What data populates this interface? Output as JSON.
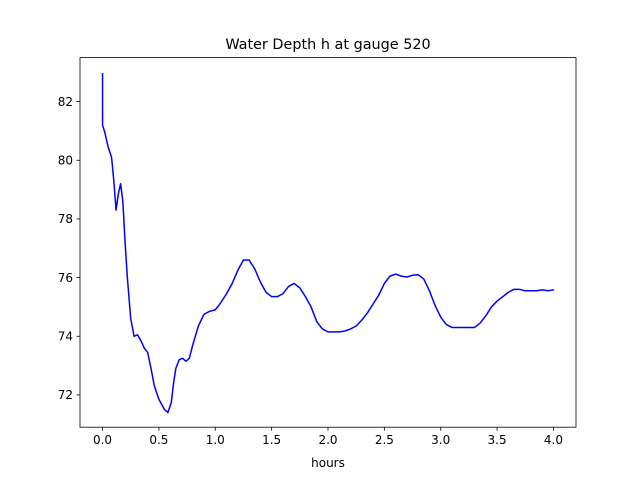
{
  "chart_data": {
    "type": "line",
    "title": "Water Depth h at gauge 520",
    "xlabel": "hours",
    "ylabel": "",
    "xlim": [
      -0.2,
      4.2
    ],
    "ylim": [
      70.9,
      83.5
    ],
    "xticks": [
      0.0,
      0.5,
      1.0,
      1.5,
      2.0,
      2.5,
      3.0,
      3.5,
      4.0
    ],
    "xtick_labels": [
      "0.0",
      "0.5",
      "1.0",
      "1.5",
      "2.0",
      "2.5",
      "3.0",
      "3.5",
      "4.0"
    ],
    "yticks": [
      72,
      74,
      76,
      78,
      80,
      82
    ],
    "ytick_labels": [
      "72",
      "74",
      "76",
      "78",
      "80",
      "82"
    ],
    "grid": false,
    "legend": "none",
    "series": [
      {
        "color": "#0000ff",
        "x": [
          0.0,
          0.0,
          0.0,
          0.02,
          0.05,
          0.08,
          0.1,
          0.12,
          0.14,
          0.16,
          0.18,
          0.2,
          0.22,
          0.25,
          0.28,
          0.31,
          0.34,
          0.37,
          0.4,
          0.43,
          0.46,
          0.5,
          0.55,
          0.58,
          0.61,
          0.63,
          0.65,
          0.68,
          0.71,
          0.74,
          0.77,
          0.8,
          0.85,
          0.9,
          0.95,
          1.0,
          1.05,
          1.1,
          1.15,
          1.2,
          1.25,
          1.3,
          1.35,
          1.4,
          1.45,
          1.5,
          1.55,
          1.6,
          1.65,
          1.7,
          1.75,
          1.8,
          1.85,
          1.9,
          1.95,
          2.0,
          2.05,
          2.1,
          2.15,
          2.2,
          2.25,
          2.3,
          2.35,
          2.4,
          2.45,
          2.5,
          2.55,
          2.6,
          2.65,
          2.7,
          2.75,
          2.8,
          2.85,
          2.9,
          2.95,
          3.0,
          3.05,
          3.1,
          3.15,
          3.2,
          3.25,
          3.3,
          3.35,
          3.4,
          3.45,
          3.5,
          3.55,
          3.6,
          3.65,
          3.7,
          3.75,
          3.8,
          3.85,
          3.9,
          3.95,
          4.0
        ],
        "y": [
          82.95,
          81.3,
          81.2,
          80.95,
          80.45,
          80.1,
          79.3,
          78.3,
          78.85,
          79.2,
          78.6,
          77.2,
          76.0,
          74.6,
          74.0,
          74.05,
          73.85,
          73.6,
          73.45,
          72.9,
          72.3,
          71.85,
          71.5,
          71.4,
          71.75,
          72.4,
          72.9,
          73.2,
          73.25,
          73.15,
          73.25,
          73.7,
          74.35,
          74.75,
          74.85,
          74.9,
          75.15,
          75.45,
          75.8,
          76.25,
          76.6,
          76.6,
          76.3,
          75.85,
          75.5,
          75.35,
          75.35,
          75.45,
          75.7,
          75.8,
          75.65,
          75.35,
          75.0,
          74.5,
          74.25,
          74.15,
          74.15,
          74.15,
          74.18,
          74.25,
          74.35,
          74.55,
          74.8,
          75.1,
          75.4,
          75.8,
          76.05,
          76.12,
          76.05,
          76.02,
          76.08,
          76.1,
          75.95,
          75.55,
          75.05,
          74.65,
          74.4,
          74.3,
          74.3,
          74.3,
          74.3,
          74.3,
          74.45,
          74.7,
          75.0,
          75.2,
          75.35,
          75.5,
          75.6,
          75.6,
          75.55,
          75.55,
          75.55,
          75.58,
          75.55,
          75.58
        ]
      }
    ]
  }
}
